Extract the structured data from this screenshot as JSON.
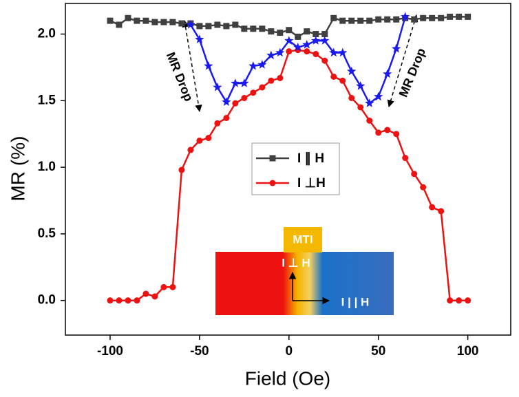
{
  "chart_data": {
    "type": "line",
    "x_label": "Field (Oe)",
    "y_label": "MR (%)",
    "xlim": [
      -125,
      124
    ],
    "ylim": [
      -0.26,
      2.23
    ],
    "xticks": [
      -100,
      -50,
      0,
      50,
      100
    ],
    "yticks": [
      {
        "value": 0,
        "label": "0.0"
      },
      {
        "value": 0.5,
        "label": "0.5"
      },
      {
        "value": 1,
        "label": "1.0"
      },
      {
        "value": 1.5,
        "label": "1.5"
      },
      {
        "value": 2,
        "label": "2.0"
      }
    ],
    "series": [
      {
        "name": "I ∥ H",
        "color": "#404040",
        "marker": "square",
        "x": [
          -100,
          -95,
          -90,
          -85,
          -80,
          -75,
          -70,
          -65,
          -60,
          -55,
          -50,
          -45,
          -40,
          -35,
          -30,
          -25,
          -20,
          -15,
          -10,
          -5,
          0,
          5,
          10,
          15,
          20,
          25,
          30,
          35,
          40,
          45,
          50,
          55,
          60,
          65,
          70,
          75,
          80,
          85,
          90,
          95,
          100
        ],
        "values": [
          2.1,
          2.07,
          2.12,
          2.1,
          2.1,
          2.09,
          2.09,
          2.09,
          2.08,
          2.08,
          2.06,
          2.06,
          2.07,
          2.06,
          2.07,
          2.04,
          2.04,
          2.04,
          2.02,
          2.01,
          2.03,
          1.98,
          2.02,
          2.0,
          2.0,
          2.12,
          2.1,
          2.1,
          2.1,
          2.1,
          2.11,
          2.11,
          2.11,
          2.12,
          2.11,
          2.12,
          2.12,
          2.12,
          2.13,
          2.13,
          2.13
        ]
      },
      {
        "name": "I ⊥H",
        "color": "#ee1111",
        "marker": "circle",
        "x": [
          -100,
          -95,
          -90,
          -85,
          -80,
          -75,
          -70,
          -65,
          -60,
          -55,
          -50,
          -45,
          -40,
          -35,
          -30,
          -25,
          -20,
          -15,
          -10,
          -5,
          0,
          5,
          10,
          15,
          20,
          25,
          30,
          35,
          40,
          45,
          50,
          55,
          60,
          65,
          70,
          75,
          80,
          85,
          90,
          95,
          100
        ],
        "values": [
          0,
          0,
          0,
          0,
          0.05,
          0.03,
          0.1,
          0.1,
          0.98,
          1.13,
          1.2,
          1.22,
          1.33,
          1.37,
          1.48,
          1.52,
          1.56,
          1.6,
          1.65,
          1.67,
          1.87,
          1.88,
          1.87,
          1.85,
          1.8,
          1.68,
          1.65,
          1.52,
          1.45,
          1.35,
          1.26,
          1.28,
          1.25,
          1.07,
          0.95,
          0.85,
          0.7,
          0.67,
          0,
          0,
          0
        ]
      },
      {
        "color": "#1a1aee",
        "marker": "star",
        "x": [
          -55,
          -50,
          -45,
          -40,
          -35,
          -30,
          -25,
          -20,
          -15,
          -10,
          -5,
          0,
          5,
          10,
          15,
          20,
          25,
          30,
          35,
          40,
          45,
          50,
          55,
          60,
          65
        ],
        "values": [
          2.07,
          1.96,
          1.76,
          1.6,
          1.49,
          1.63,
          1.63,
          1.76,
          1.77,
          1.84,
          1.86,
          1.95,
          1.9,
          1.92,
          1.95,
          1.95,
          1.86,
          1.86,
          1.72,
          1.61,
          1.48,
          1.53,
          1.7,
          1.89,
          2.13
        ]
      }
    ],
    "annotations": [
      "MR Drop",
      "MR Drop"
    ],
    "inset": {
      "top_label": "MTI",
      "perpendicular_label": "I ⊥ H",
      "parallel_label": "I | | H"
    }
  }
}
